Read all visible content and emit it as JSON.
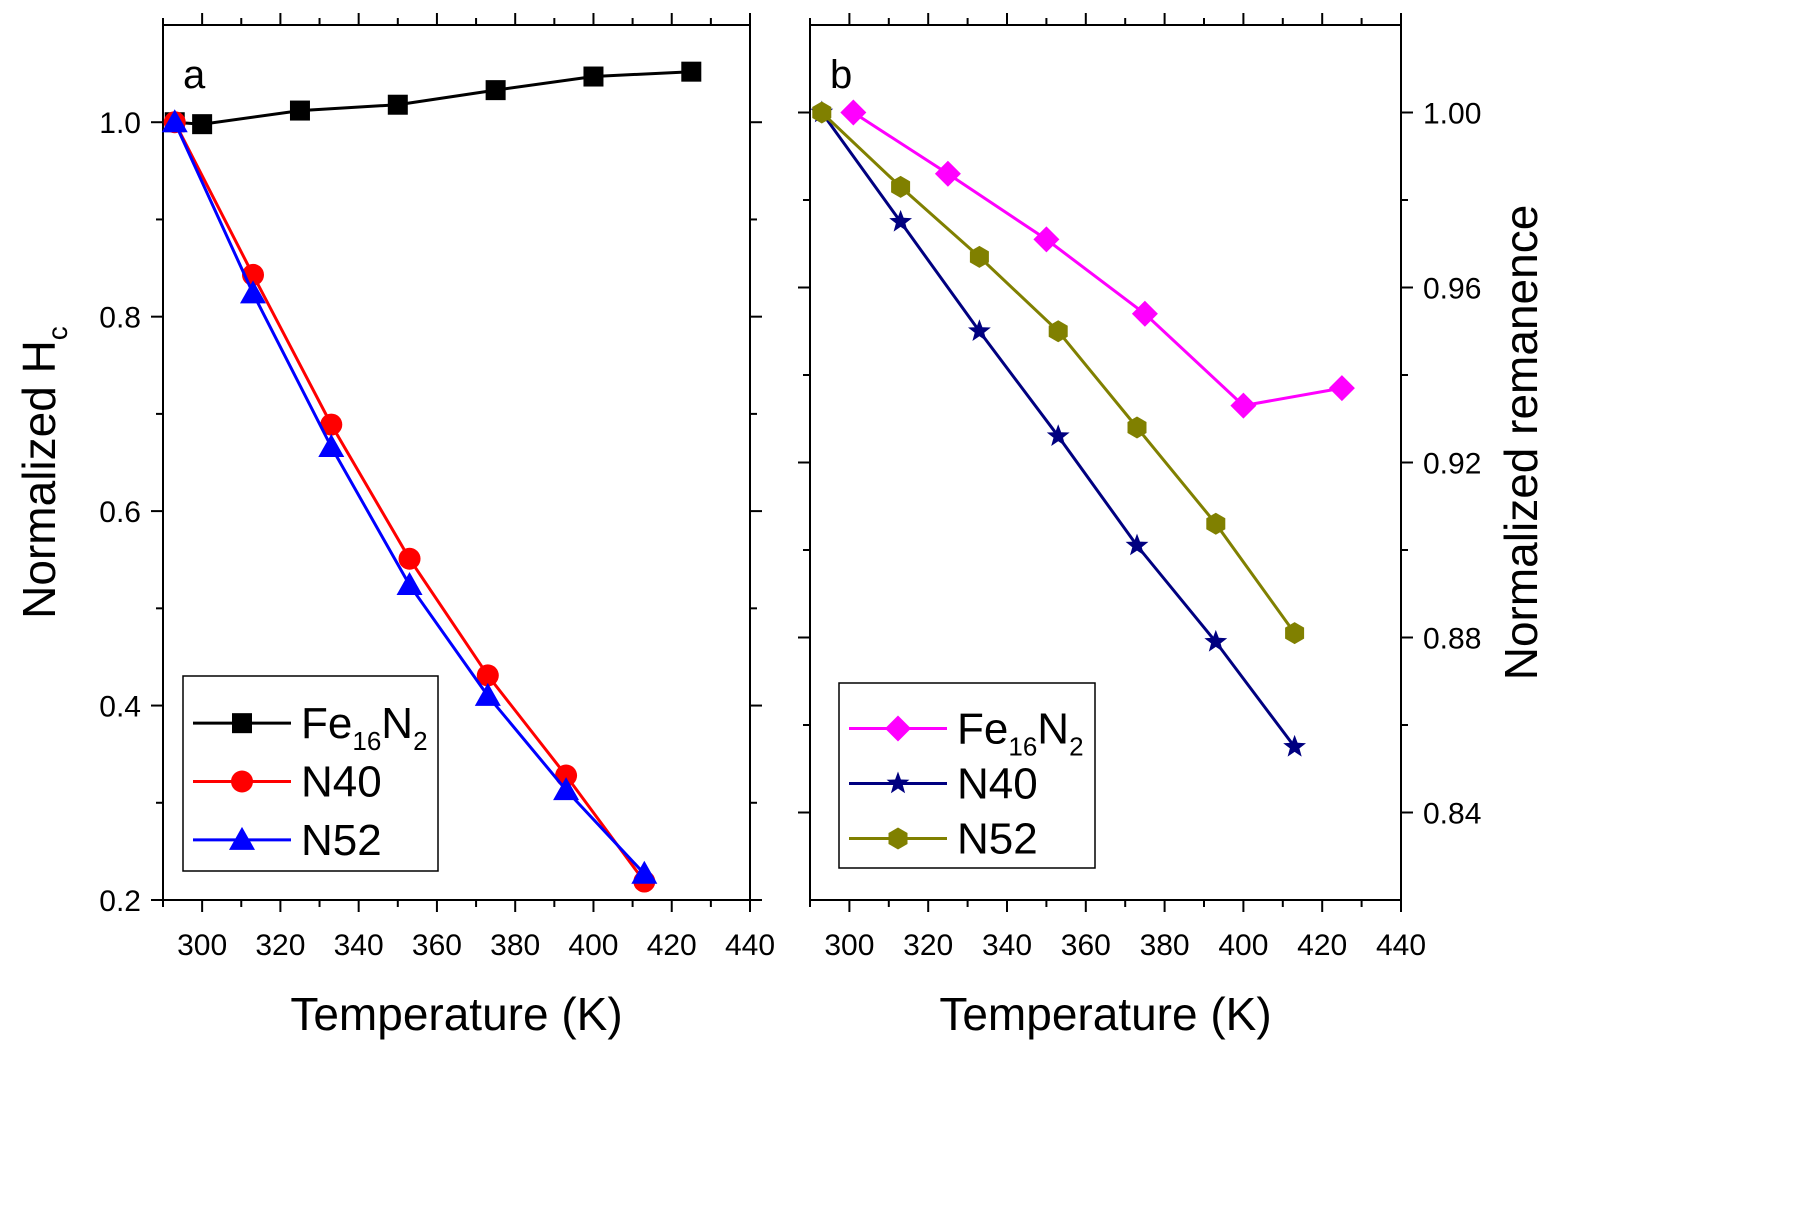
{
  "chart_data": [
    {
      "type": "line",
      "panel_label": "a",
      "xlabel": "Temperature (K)",
      "ylabel": "Normalized H",
      "ylabel_subscript": "c",
      "xlim": [
        290,
        440
      ],
      "ylim": [
        0.2,
        1.1
      ],
      "xticks": [
        300,
        320,
        340,
        360,
        380,
        400,
        420,
        440
      ],
      "yticks": [
        0.2,
        0.4,
        0.6,
        0.8,
        1.0
      ],
      "xtick_labels": [
        "300",
        "320",
        "340",
        "360",
        "380",
        "400",
        "420",
        "440"
      ],
      "ytick_labels": [
        "0.2",
        "0.4",
        "0.6",
        "0.8",
        "1.0"
      ],
      "legend_position": "bottom-left",
      "series": [
        {
          "name": "Fe16N2",
          "label_main": "Fe",
          "label_sub1": "16",
          "label_mid": "N",
          "label_sub2": "2",
          "color": "#000000",
          "marker": "square",
          "x": [
            293,
            300,
            325,
            350,
            375,
            400,
            425
          ],
          "y": [
            1.0,
            0.998,
            1.012,
            1.018,
            1.033,
            1.047,
            1.052
          ]
        },
        {
          "name": "N40",
          "label_main": "N40",
          "color": "#ff0000",
          "marker": "circle",
          "x": [
            293,
            313,
            333,
            353,
            373,
            393,
            413
          ],
          "y": [
            1.0,
            0.843,
            0.689,
            0.551,
            0.431,
            0.328,
            0.219
          ]
        },
        {
          "name": "N52",
          "label_main": "N52",
          "color": "#0000ff",
          "marker": "triangle",
          "x": [
            293,
            313,
            333,
            353,
            373,
            393,
            413
          ],
          "y": [
            1.0,
            0.824,
            0.666,
            0.524,
            0.41,
            0.313,
            0.227
          ]
        }
      ]
    },
    {
      "type": "line",
      "panel_label": "b",
      "xlabel": "Temperature (K)",
      "ylabel": "Normalized remanence",
      "xlim": [
        290,
        440
      ],
      "ylim": [
        0.82,
        1.02
      ],
      "xticks": [
        300,
        320,
        340,
        360,
        380,
        400,
        420,
        440
      ],
      "yticks": [
        0.84,
        0.88,
        0.92,
        0.96,
        1.0
      ],
      "xtick_labels": [
        "300",
        "320",
        "340",
        "360",
        "380",
        "400",
        "420",
        "440"
      ],
      "ytick_labels": [
        "0.84",
        "0.88",
        "0.92",
        "0.96",
        "1.00"
      ],
      "legend_position": "bottom-left",
      "series": [
        {
          "name": "Fe16N2",
          "label_main": "Fe",
          "label_sub1": "16",
          "label_mid": "N",
          "label_sub2": "2",
          "color": "#ff00ff",
          "marker": "diamond",
          "x": [
            301,
            325,
            350,
            375,
            400,
            425
          ],
          "y": [
            1.0,
            0.986,
            0.971,
            0.954,
            0.933,
            0.937
          ]
        },
        {
          "name": "N40",
          "label_main": "N40",
          "color": "#000080",
          "marker": "star",
          "x": [
            293,
            313,
            333,
            353,
            373,
            393,
            413
          ],
          "y": [
            1.0,
            0.975,
            0.95,
            0.926,
            0.901,
            0.879,
            0.855
          ]
        },
        {
          "name": "N52",
          "label_main": "N52",
          "color": "#808000",
          "marker": "hexagon",
          "x": [
            293,
            313,
            333,
            353,
            373,
            393,
            413
          ],
          "y": [
            1.0,
            0.983,
            0.967,
            0.95,
            0.928,
            0.906,
            0.881
          ]
        }
      ]
    }
  ]
}
